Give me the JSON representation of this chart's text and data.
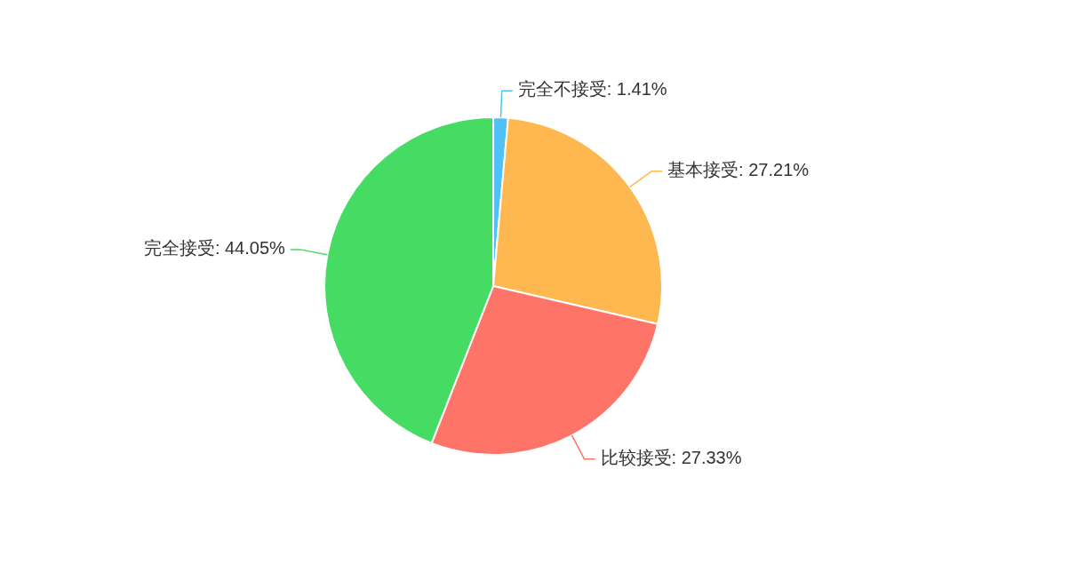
{
  "chart_data": {
    "type": "pie",
    "categories": [
      "完全不接受",
      "基本接受",
      "比较接受",
      "完全接受"
    ],
    "values": [
      1.41,
      27.21,
      27.33,
      44.05
    ],
    "colors": [
      "#4fc1f5",
      "#ffb74f",
      "#ff7468",
      "#46dc64"
    ],
    "value_labels": [
      "1.41%",
      "27.21%",
      "27.33%",
      "44.05%"
    ]
  }
}
